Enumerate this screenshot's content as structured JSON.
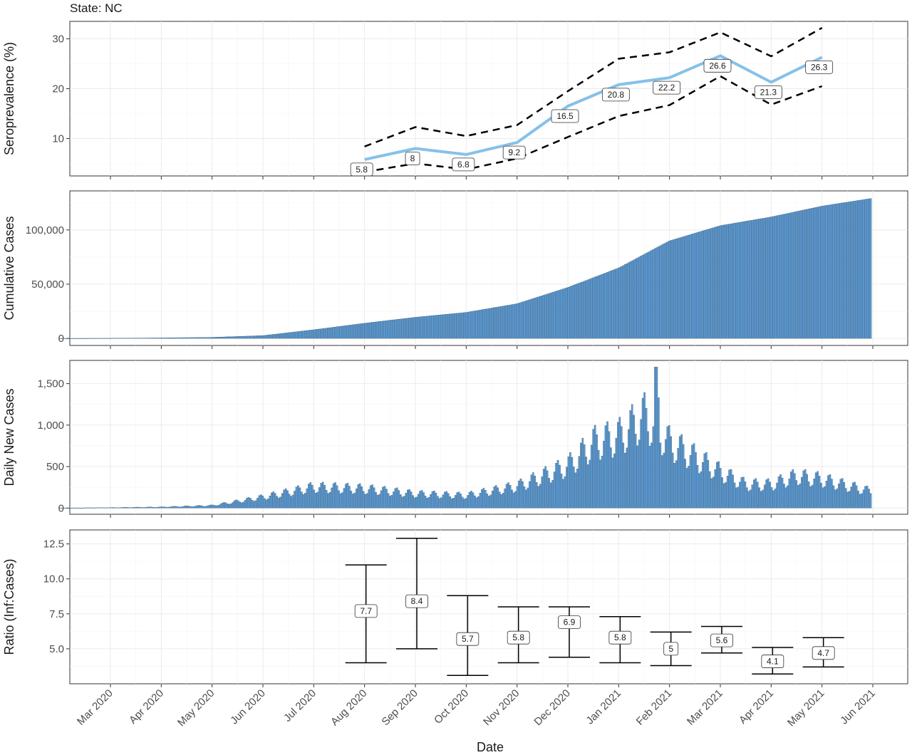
{
  "state_label": "State: NC",
  "xlabel": "Date",
  "x_ticks": [
    "Mar 2020",
    "Apr 2020",
    "May 2020",
    "Jun 2020",
    "Jul 2020",
    "Aug 2020",
    "Sep 2020",
    "Oct 2020",
    "Nov 2020",
    "Dec 2020",
    "Jan 2021",
    "Feb 2021",
    "Mar 2021",
    "Apr 2021",
    "May 2021",
    "Jun 2021"
  ],
  "colors": {
    "series": "#5b9bd5",
    "line": "#85c1e9",
    "ci": "#000000"
  },
  "chart_data": [
    {
      "type": "line",
      "ylabel": "Seroprevalence (%)",
      "y_ticks": [
        "10",
        "20",
        "30"
      ],
      "ylim": [
        2.5,
        33.5
      ],
      "x": [
        "Aug 2020",
        "Sep 2020",
        "Oct 2020",
        "Nov 2020",
        "Dec 2020",
        "Jan 2021",
        "Feb 2021",
        "Mar 2021",
        "Apr 2021",
        "May 2021"
      ],
      "series": [
        {
          "values": [
            5.8,
            8,
            6.8,
            9.2,
            16.5,
            20.8,
            22.2,
            26.6,
            21.3,
            26.3
          ]
        },
        {
          "values": [
            8.4,
            12.3,
            10.5,
            12.7,
            19.5,
            26.0,
            27.3,
            31.3,
            26.5,
            32.2
          ]
        },
        {
          "values": [
            3.3,
            5.0,
            3.8,
            6.0,
            10.3,
            14.5,
            16.7,
            22.5,
            16.8,
            20.5
          ]
        }
      ],
      "point_labels": [
        "5.8",
        "8",
        "6.8",
        "9.2",
        "16.5",
        "20.8",
        "22.2",
        "26.6",
        "21.3",
        "26.3"
      ]
    },
    {
      "type": "bar",
      "ylabel": "Cumulative Cases",
      "y_ticks": [
        "0",
        "50,000",
        "100,000"
      ],
      "ylim": [
        -6500,
        136000
      ],
      "x_range": [
        "Feb 2020",
        "May 2021"
      ],
      "anchors": [
        [
          "Feb 2020",
          0
        ],
        [
          "Mar 2020",
          150
        ],
        [
          "Apr 2020",
          500
        ],
        [
          "May 2020",
          1000
        ],
        [
          "Jun 2020",
          2600
        ],
        [
          "Jul 2020",
          8000
        ],
        [
          "Aug 2020",
          14000
        ],
        [
          "Sep 2020",
          19500
        ],
        [
          "Oct 2020",
          24000
        ],
        [
          "Nov 2020",
          32000
        ],
        [
          "Dec 2020",
          47000
        ],
        [
          "Jan 2021",
          65000
        ],
        [
          "Feb 2021",
          90000
        ],
        [
          "Mar 2021",
          104000
        ],
        [
          "Apr 2021",
          112000
        ],
        [
          "May 2021",
          122000
        ],
        [
          "May 2021",
          129000
        ]
      ]
    },
    {
      "type": "bar",
      "ylabel": "Daily New Cases",
      "y_ticks": [
        "0",
        "500",
        "1,000",
        "1,500"
      ],
      "ylim": [
        -75,
        1780
      ],
      "x_range": [
        "Feb 2020",
        "May 2021"
      ],
      "anchors": [
        [
          "Feb 2020",
          0
        ],
        [
          "Mar 2020",
          5
        ],
        [
          "Apr 2020",
          12
        ],
        [
          "May 2020",
          30
        ],
        [
          "Jun 2020",
          130
        ],
        [
          "Jul 2020",
          250
        ],
        [
          "Aug 2020",
          230
        ],
        [
          "Sep 2020",
          170
        ],
        [
          "Oct 2020",
          150
        ],
        [
          "Nov 2020",
          260
        ],
        [
          "Dec 2020",
          500
        ],
        [
          "Dec 2020",
          780
        ],
        [
          "Jan 2021",
          850
        ],
        [
          "Jan 2021",
          1100
        ],
        [
          "Feb 2021",
          780
        ],
        [
          "Mar 2021",
          430
        ],
        [
          "Mar 2021",
          280
        ],
        [
          "Apr 2021",
          280
        ],
        [
          "Apr 2021",
          380
        ],
        [
          "May 2021",
          340
        ],
        [
          "May 2021",
          200
        ]
      ],
      "peak": 1700
    },
    {
      "type": "errorbar",
      "ylabel": "Ratio (Inf:Cases)",
      "y_ticks": [
        "5.0",
        "7.5",
        "10.0",
        "12.5"
      ],
      "ylim": [
        2.5,
        13.5
      ],
      "x": [
        "Aug 2020",
        "Sep 2020",
        "Oct 2020",
        "Nov 2020",
        "Dec 2020",
        "Jan 2021",
        "Feb 2021",
        "Mar 2021",
        "Apr 2021",
        "May 2021"
      ],
      "values": [
        7.7,
        8.4,
        5.7,
        5.8,
        6.9,
        5.8,
        5,
        5.6,
        4.1,
        4.7
      ],
      "upper": [
        11.0,
        12.9,
        8.8,
        8.0,
        8.0,
        7.3,
        6.2,
        6.6,
        5.1,
        5.8
      ],
      "lower": [
        4.0,
        5.0,
        3.1,
        4.0,
        4.4,
        4.0,
        3.8,
        4.7,
        3.2,
        3.7
      ],
      "point_labels": [
        "7.7",
        "8.4",
        "5.7",
        "5.8",
        "6.9",
        "5.8",
        "5",
        "5.6",
        "4.1",
        "4.7"
      ]
    }
  ]
}
